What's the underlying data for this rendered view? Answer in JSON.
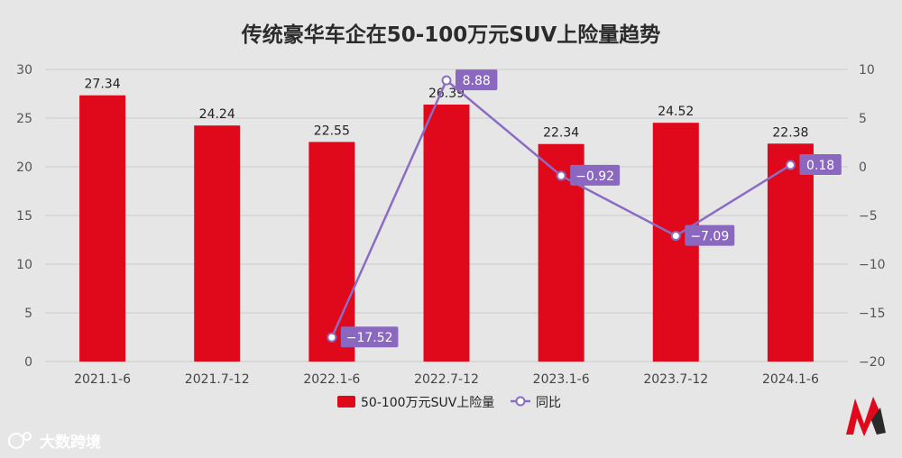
{
  "chart_data": {
    "type": "bar+line",
    "title": "传统豪华车企在50-100万元SUV上险量趋势",
    "categories": [
      "2021.1-6",
      "2021.7-12",
      "2022.1-6",
      "2022.7-12",
      "2023.1-6",
      "2023.7-12",
      "2024.1-6"
    ],
    "series": [
      {
        "name": "50-100万元SUV上险量",
        "type": "bar",
        "axis": "left",
        "values": [
          27.34,
          24.24,
          22.55,
          26.39,
          22.34,
          24.52,
          22.38
        ],
        "labels": [
          "27.34",
          "24.24",
          "22.55",
          "26.39",
          "22.34",
          "24.52",
          "22.38"
        ]
      },
      {
        "name": "同比",
        "type": "line",
        "axis": "right",
        "values": [
          null,
          null,
          -17.52,
          8.88,
          -0.92,
          -7.09,
          0.18
        ],
        "labels": [
          "",
          "",
          "−17.52",
          "8.88",
          "−0.92",
          "−7.09",
          "0.18"
        ]
      }
    ],
    "y_left": {
      "min": 0,
      "max": 30,
      "ticks": [
        "0",
        "5",
        "10",
        "15",
        "20",
        "25",
        "30"
      ]
    },
    "y_right": {
      "min": -20,
      "max": 10,
      "ticks": [
        "−20",
        "−15",
        "−10",
        "−5",
        "0",
        "5",
        "10"
      ]
    },
    "grid": true,
    "legend_position": "bottom-center"
  },
  "colors": {
    "bar": "#e0091b",
    "line": "#8b6cc3",
    "label_bg": "#8b68bf",
    "grid": "#c9c9c9",
    "background": "#e6e6e6"
  },
  "watermark": {
    "text": "大数跨境"
  }
}
